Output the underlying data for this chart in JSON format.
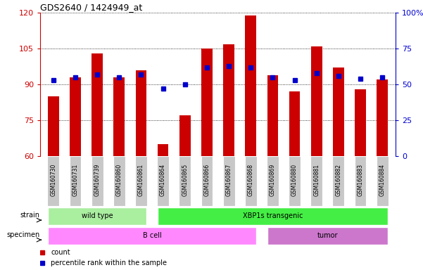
{
  "title": "GDS2640 / 1424949_at",
  "samples": [
    "GSM160730",
    "GSM160731",
    "GSM160739",
    "GSM160860",
    "GSM160861",
    "GSM160864",
    "GSM160865",
    "GSM160866",
    "GSM160867",
    "GSM160868",
    "GSM160869",
    "GSM160880",
    "GSM160881",
    "GSM160882",
    "GSM160883",
    "GSM160884"
  ],
  "counts": [
    85,
    93,
    103,
    93,
    96,
    65,
    77,
    105,
    107,
    119,
    94,
    87,
    106,
    97,
    88,
    92
  ],
  "percentiles": [
    53,
    55,
    57,
    55,
    57,
    47,
    50,
    62,
    63,
    62,
    55,
    53,
    58,
    56,
    54,
    55
  ],
  "ylim_left": [
    60,
    120
  ],
  "ylim_right": [
    0,
    100
  ],
  "yticks_left": [
    60,
    75,
    90,
    105,
    120
  ],
  "yticks_right": [
    0,
    25,
    50,
    75,
    100
  ],
  "bar_color": "#cc0000",
  "dot_color": "#0000cc",
  "strain_groups": [
    {
      "label": "wild type",
      "start": 0,
      "end": 4,
      "color": "#aaeea0"
    },
    {
      "label": "XBP1s transgenic",
      "start": 5,
      "end": 15,
      "color": "#44ee44"
    }
  ],
  "specimen_groups": [
    {
      "label": "B cell",
      "start": 0,
      "end": 9,
      "color": "#ff88ff"
    },
    {
      "label": "tumor",
      "start": 10,
      "end": 15,
      "color": "#cc77cc"
    }
  ],
  "tick_bg_color": "#c8c8c8",
  "bg_color": "#ffffff",
  "grid_color": "#000000",
  "left_axis_color": "#cc0000",
  "right_axis_color": "#0000cc",
  "bar_width": 0.5,
  "n_samples": 16
}
